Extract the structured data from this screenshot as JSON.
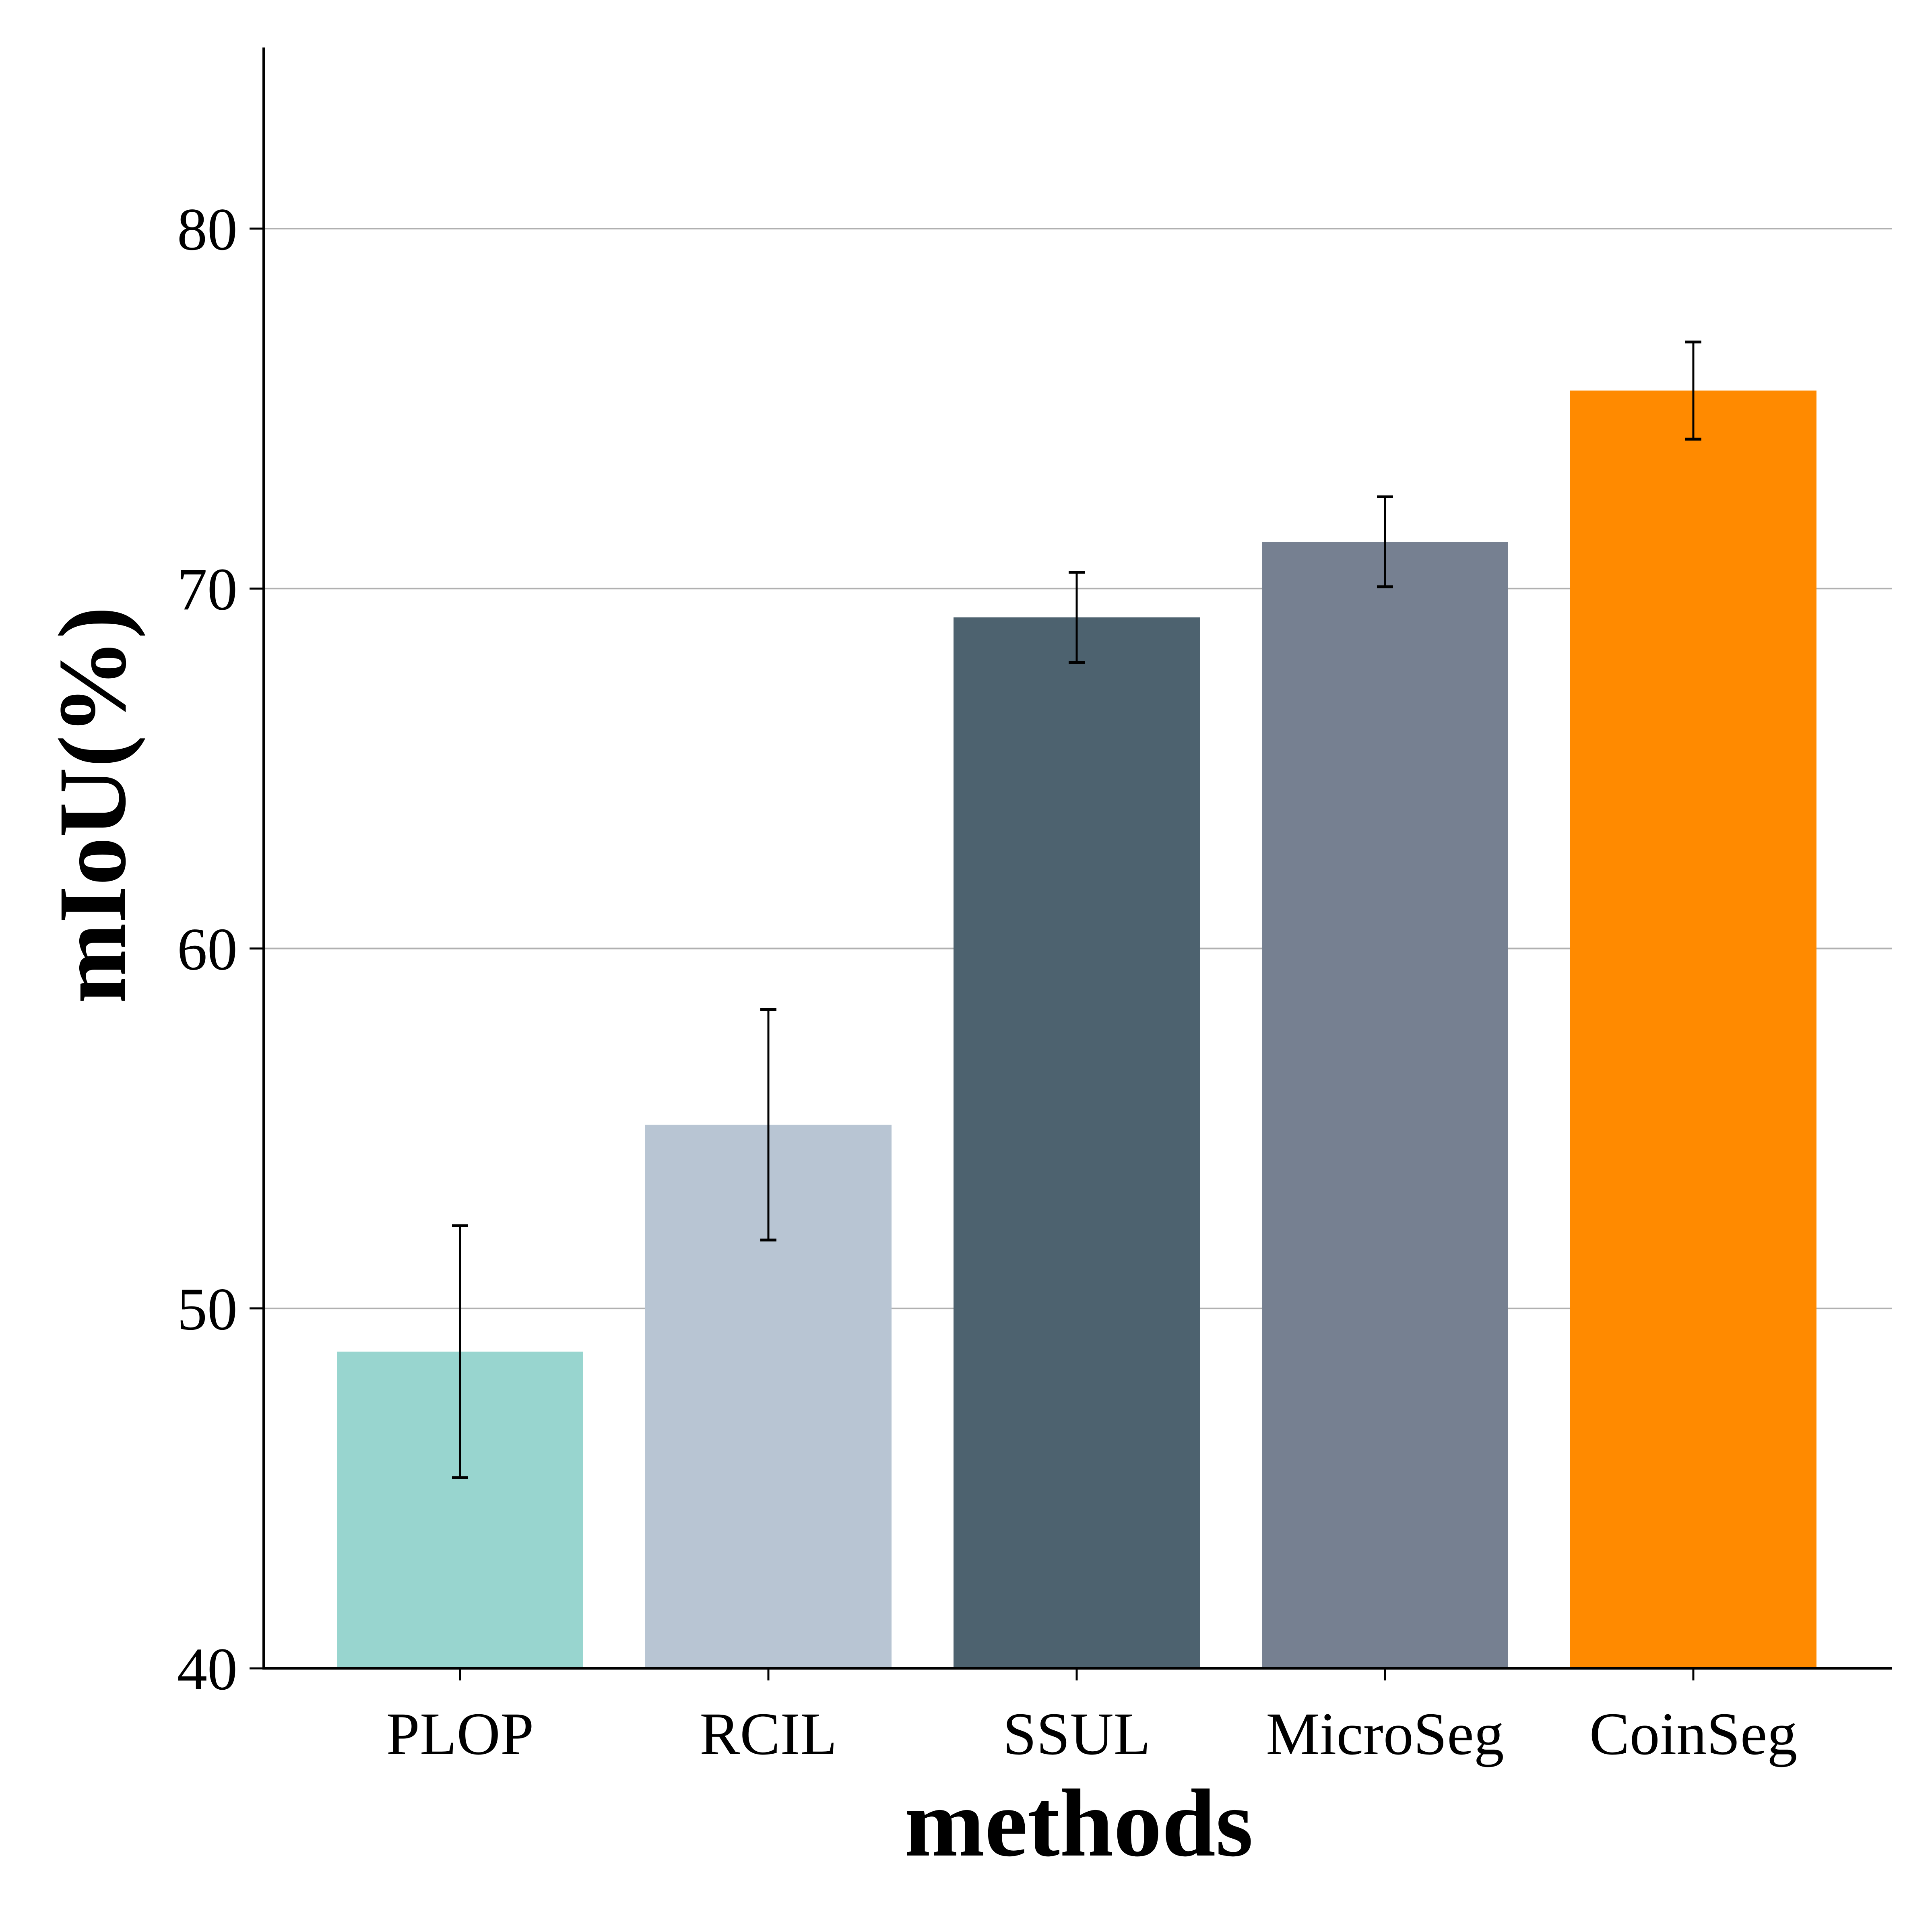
{
  "chart_data": {
    "type": "bar",
    "title": "",
    "xlabel": "methods",
    "ylabel": "mIoU(%)",
    "categories": [
      "PLOP",
      "RCIL",
      "SSUL",
      "MicroSeg",
      "CoinSeg"
    ],
    "values": [
      48.8,
      55.1,
      69.2,
      71.3,
      75.5
    ],
    "error": [
      3.5,
      3.2,
      1.25,
      1.25,
      1.35
    ],
    "colors": [
      "#98d5cf",
      "#b8c5d3",
      "#4d626f",
      "#768091",
      "#ff8a00"
    ],
    "ylim": [
      40,
      85
    ],
    "yticks": [
      40,
      50,
      60,
      70,
      80
    ],
    "grid": true,
    "gridColor": "#b0b0b0"
  }
}
